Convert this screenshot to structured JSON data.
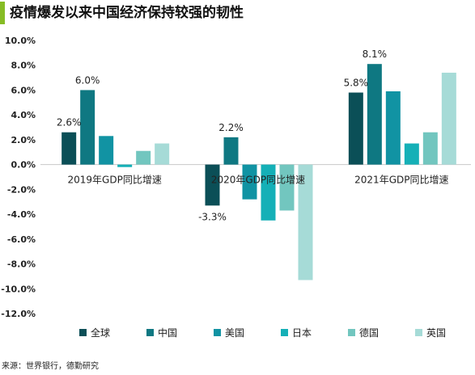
{
  "title": "疫情爆发以来中国经济保持较强的韧性",
  "source": "来源：世界银行，德勤研究",
  "chart_data": {
    "type": "bar",
    "title": "疫情爆发以来中国经济保持较强的韧性",
    "xlabel": "",
    "ylabel": "",
    "ylim": [
      -12,
      10
    ],
    "yticks": [
      10,
      8,
      6,
      4,
      2,
      0,
      -2,
      -4,
      -6,
      -8,
      -10,
      -12
    ],
    "ytick_format": "%",
    "grid": false,
    "legend_position": "bottom",
    "categories": [
      "2019年GDP同比增速",
      "2020年GDP同比增速",
      "2021年GDP同比增速"
    ],
    "series": [
      {
        "name": "全球",
        "color": "#0b4f57",
        "values": [
          2.6,
          -3.3,
          5.8
        ]
      },
      {
        "name": "中国",
        "color": "#0f7882",
        "values": [
          6.0,
          2.2,
          8.1
        ]
      },
      {
        "name": "美国",
        "color": "#1193a3",
        "values": [
          2.3,
          -2.8,
          5.9
        ]
      },
      {
        "name": "日本",
        "color": "#15b0b7",
        "values": [
          -0.2,
          -4.5,
          1.7
        ]
      },
      {
        "name": "德国",
        "color": "#72c6bf",
        "values": [
          1.1,
          -3.7,
          2.6
        ]
      },
      {
        "name": "英国",
        "color": "#a6dbd7",
        "values": [
          1.7,
          -9.3,
          7.4
        ]
      }
    ],
    "data_labels": [
      {
        "category": 0,
        "series": 0,
        "text": "2.6%"
      },
      {
        "category": 0,
        "series": 1,
        "text": "6.0%"
      },
      {
        "category": 1,
        "series": 0,
        "text": "-3.3%"
      },
      {
        "category": 1,
        "series": 1,
        "text": "2.2%"
      },
      {
        "category": 2,
        "series": 0,
        "text": "5.8%"
      },
      {
        "category": 2,
        "series": 1,
        "text": "8.1%"
      }
    ]
  }
}
